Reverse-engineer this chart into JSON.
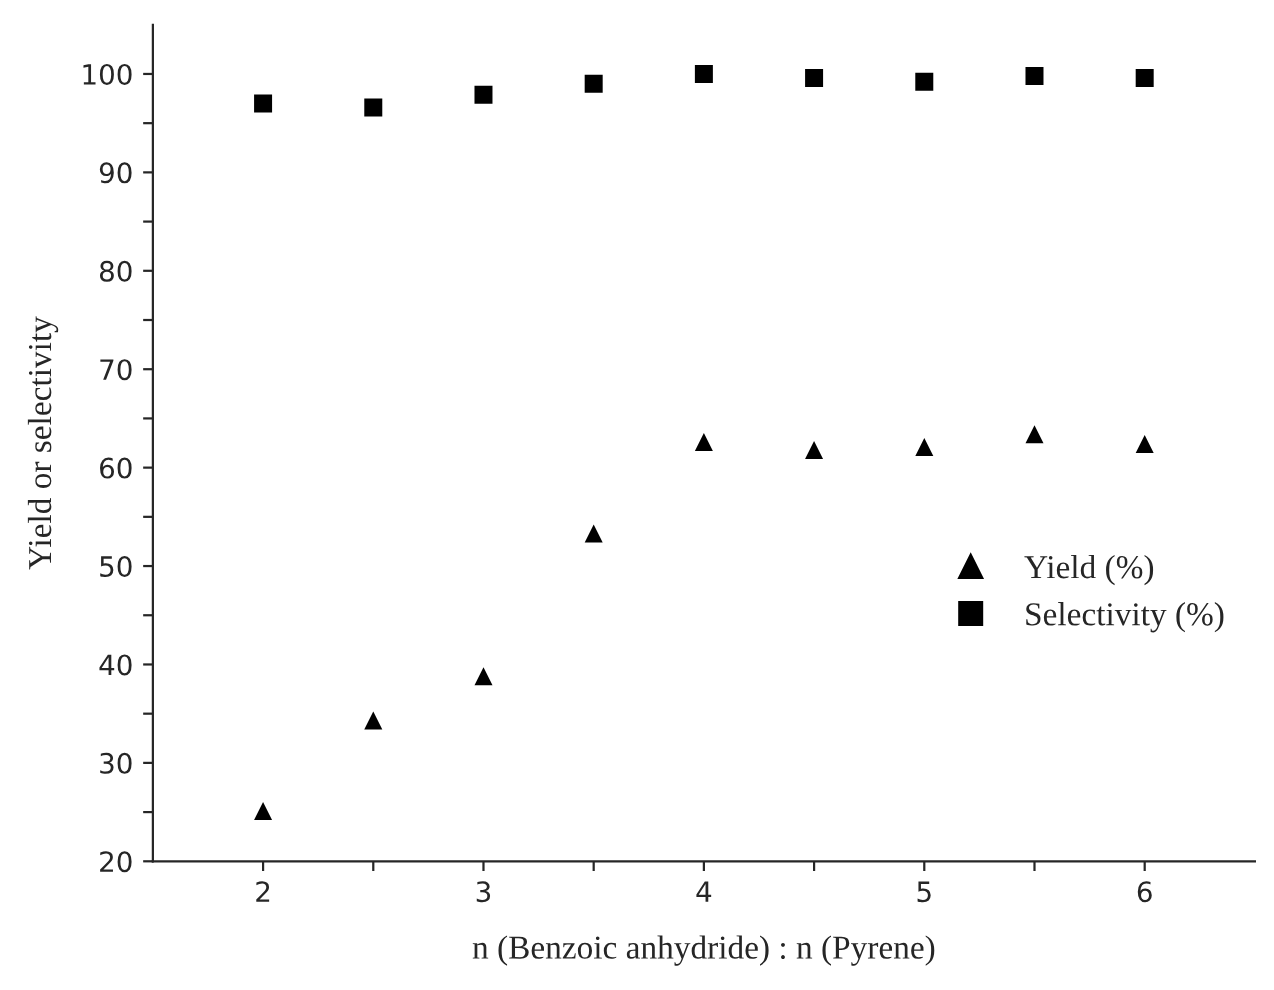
{
  "chart_data": {
    "type": "scatter",
    "xlabel": "n (Benzoic anhydride) : n (Pyrene)",
    "ylabel": "Yield or selectivity",
    "x": [
      2,
      2.5,
      3,
      3.5,
      4,
      4.5,
      5,
      5.5,
      6
    ],
    "series": [
      {
        "name": "Yield (%)",
        "color": "#000000",
        "marker": "triangle",
        "values": [
          25.1,
          34.3,
          38.8,
          53.3,
          62.6,
          61.8,
          62.1,
          63.4,
          62.4
        ]
      },
      {
        "name": "Selectivity (%)",
        "color": "#000000",
        "marker": "square",
        "values": [
          97.0,
          96.6,
          97.9,
          99.0,
          100.0,
          99.6,
          99.2,
          99.8,
          99.6
        ]
      }
    ],
    "xlim": [
      1.5,
      6.5
    ],
    "xticks": [
      2,
      {
        "value": 2.5,
        "label": null
      },
      3,
      {
        "value": 3.5,
        "label": null
      },
      4,
      {
        "value": 4.5,
        "label": null
      },
      5,
      {
        "value": 5.5,
        "label": null
      },
      6
    ],
    "ylim": [
      20,
      105
    ],
    "yticks": [
      20,
      {
        "value": 25,
        "label": null
      },
      30,
      {
        "value": 35,
        "label": null
      },
      40,
      {
        "value": 45,
        "label": null
      },
      50,
      {
        "value": 55,
        "label": null
      },
      60,
      {
        "value": 65,
        "label": null
      },
      70,
      {
        "value": 75,
        "label": null
      },
      80,
      {
        "value": 85,
        "label": null
      },
      90,
      {
        "value": 95,
        "label": null
      },
      100
    ],
    "grid": false,
    "legend": "right"
  }
}
